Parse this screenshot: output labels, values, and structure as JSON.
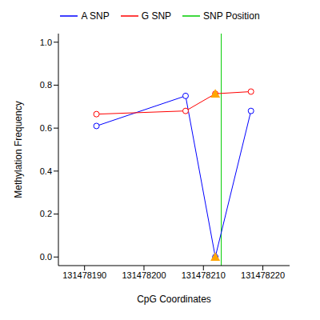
{
  "chart_data": {
    "type": "line",
    "x_label": "CpG Coordinates",
    "y_label": "Methylation Frequency",
    "xlim": [
      131478185.6,
      131478224.5
    ],
    "xticks": [
      131478190,
      131478200,
      131478210,
      131478220
    ],
    "ylim": [
      -0.04,
      1.04
    ],
    "yticks": [
      {
        "value": 0,
        "label": "0.0"
      },
      0.2,
      0.4,
      0.6,
      0.8,
      {
        "value": 1,
        "label": "1.0"
      }
    ],
    "legend": "top",
    "series": [
      {
        "name": "A SNP",
        "color": "#0000ff",
        "type": "line",
        "marker": "circle",
        "x": [
          131478192,
          131478207,
          131478212,
          131478218
        ],
        "values": [
          0.61,
          0.75,
          0.0,
          0.68
        ]
      },
      {
        "name": "G SNP",
        "color": "#ff0000",
        "type": "line",
        "marker": "circle",
        "x": [
          131478192,
          131478207,
          131478212,
          131478218
        ],
        "values": [
          0.665,
          0.68,
          0.76,
          0.77
        ]
      },
      {
        "color": "#ffa500",
        "type": "scatter",
        "marker": "triangle",
        "x": [
          131478212,
          131478212
        ],
        "values": [
          0.0,
          0.76
        ]
      }
    ],
    "vlines": [
      {
        "name": "SNP Position",
        "color": "#00cc00",
        "x": 131478213
      }
    ]
  }
}
